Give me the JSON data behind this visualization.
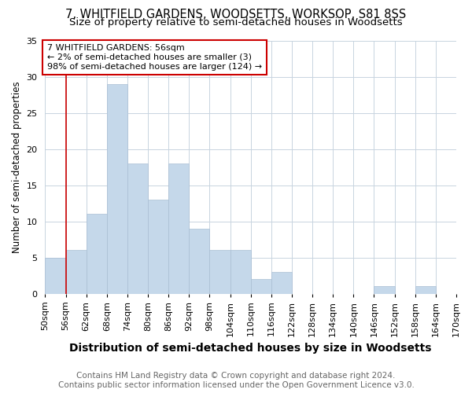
{
  "title1": "7, WHITFIELD GARDENS, WOODSETTS, WORKSOP, S81 8SS",
  "title2": "Size of property relative to semi-detached houses in Woodsetts",
  "xlabel": "Distribution of semi-detached houses by size in Woodsetts",
  "ylabel": "Number of semi-detached properties",
  "footer1": "Contains HM Land Registry data © Crown copyright and database right 2024.",
  "footer2": "Contains public sector information licensed under the Open Government Licence v3.0.",
  "annotation_line1": "7 WHITFIELD GARDENS: 56sqm",
  "annotation_line2": "← 2% of semi-detached houses are smaller (3)",
  "annotation_line3": "98% of semi-detached houses are larger (124) →",
  "bin_labels": [
    "50sqm",
    "56sqm",
    "62sqm",
    "68sqm",
    "74sqm",
    "80sqm",
    "86sqm",
    "92sqm",
    "98sqm",
    "104sqm",
    "110sqm",
    "116sqm",
    "122sqm",
    "128sqm",
    "134sqm",
    "140sqm",
    "146sqm",
    "152sqm",
    "158sqm",
    "164sqm",
    "170sqm"
  ],
  "bar_heights": [
    5,
    6,
    11,
    29,
    18,
    13,
    18,
    9,
    6,
    6,
    2,
    3,
    0,
    0,
    0,
    0,
    1,
    0,
    1,
    0
  ],
  "bar_color": "#c5d8ea",
  "bar_edge_color": "#aabfd4",
  "vline_color": "#cc0000",
  "annotation_box_edgecolor": "#cc0000",
  "ylim": [
    0,
    35
  ],
  "yticks": [
    0,
    5,
    10,
    15,
    20,
    25,
    30,
    35
  ],
  "grid_color": "#c8d4e0",
  "bg_color": "#ffffff",
  "title1_fontsize": 10.5,
  "title2_fontsize": 9.5,
  "xlabel_fontsize": 10,
  "ylabel_fontsize": 8.5,
  "tick_fontsize": 8,
  "footer_fontsize": 7.5
}
